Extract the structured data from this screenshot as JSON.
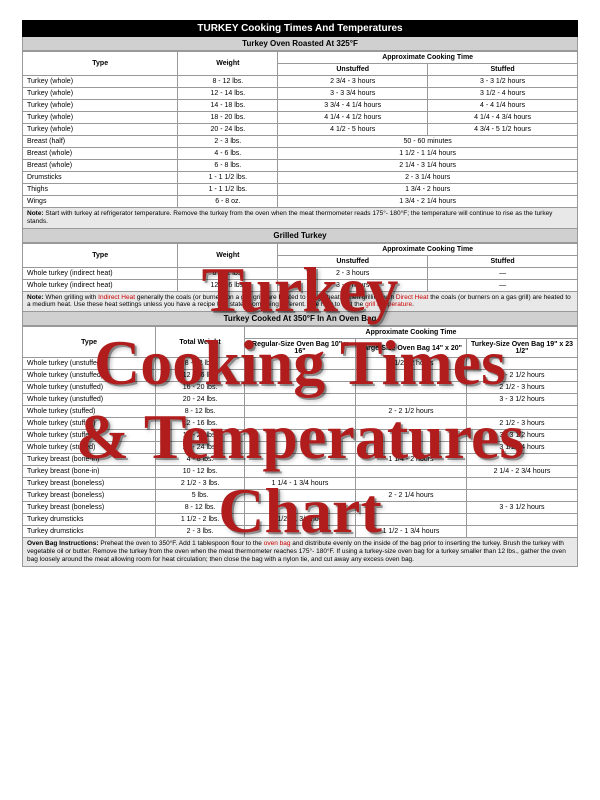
{
  "overlay": {
    "line1": "Turkey",
    "line2": "Cooking Times",
    "line3": "& Temperatures",
    "line4": "Chart"
  },
  "banner": "TURKEY Cooking Times And Temperatures",
  "sec1": {
    "title": "Turkey Oven Roasted At 325°F",
    "h_type": "Type",
    "h_weight": "Weight",
    "h_approx": "Approximate Cooking Time",
    "h_unstuffed": "Unstuffed",
    "h_stuffed": "Stuffed",
    "rows": [
      {
        "type": "Turkey (whole)",
        "wt": "8 - 12 lbs.",
        "un": "2 3/4 - 3 hours",
        "st": "3 - 3 1/2 hours"
      },
      {
        "type": "Turkey (whole)",
        "wt": "12 - 14 lbs.",
        "un": "3 - 3 3/4 hours",
        "st": "3 1/2 - 4 hours"
      },
      {
        "type": "Turkey (whole)",
        "wt": "14 - 18 lbs.",
        "un": "3 3/4 - 4 1/4 hours",
        "st": "4 - 4 1/4 hours"
      },
      {
        "type": "Turkey (whole)",
        "wt": "18 - 20 lbs.",
        "un": "4 1/4 - 4 1/2 hours",
        "st": "4 1/4 - 4 3/4 hours"
      },
      {
        "type": "Turkey (whole)",
        "wt": "20 - 24 lbs.",
        "un": "4 1/2 - 5 hours",
        "st": "4 3/4 - 5 1/2 hours"
      },
      {
        "type": "Breast (half)",
        "wt": "2 - 3 lbs.",
        "un": "50 - 60 minutes",
        "st": ""
      },
      {
        "type": "Breast (whole)",
        "wt": "4 - 6 lbs.",
        "un": "1 1/2 - 1 1/4 hours",
        "st": ""
      },
      {
        "type": "Breast (whole)",
        "wt": "6 - 8 lbs.",
        "un": "2 1/4 - 3 1/4 hours",
        "st": ""
      },
      {
        "type": "Drumsticks",
        "wt": "1 - 1 1/2 lbs.",
        "un": "2 - 3 1/4 hours",
        "st": ""
      },
      {
        "type": "Thighs",
        "wt": "1 - 1 1/2 lbs.",
        "un": "1 3/4 - 2 hours",
        "st": ""
      },
      {
        "type": "Wings",
        "wt": "6 - 8 oz.",
        "un": "1 3/4 - 2 1/4 hours",
        "st": ""
      }
    ],
    "note_b": "Note:",
    "note": " Start with turkey at refrigerator temperature. Remove the turkey from the oven when the meat thermometer reads 175°- 180°F; the temperature will continue to rise as the turkey stands."
  },
  "sec2": {
    "title": "Grilled Turkey",
    "h_type": "Type",
    "h_weight": "Weight",
    "h_approx": "Approximate Cooking Time",
    "h_unstuffed": "Unstuffed",
    "h_stuffed": "Stuffed",
    "rows": [
      {
        "type": "Whole turkey (indirect heat)",
        "wt": "8 - 12 lbs.",
        "un": "2 - 3 hours",
        "st": "—"
      },
      {
        "type": "Whole turkey (indirect heat)",
        "wt": "12 - 16 lbs.",
        "un": "3 - 4 hours",
        "st": "—"
      }
    ],
    "note_b": "Note:",
    "note_1": " When grilling with ",
    "note_indirect": "Indirect Heat",
    "note_2": " generally the coals (or burners on a gas grill) are heated to a high heat. When grilling with ",
    "note_direct": "Direct Heat",
    "note_3": " the coals (or burners on a gas grill) are heated to a medium heat. Use these heat settings unless you have a recipe that states something different. See how to test the ",
    "note_grill": "grill temperature",
    "note_4": "."
  },
  "sec3": {
    "title": "Turkey Cooked At 350°F In An Oven Bag",
    "h_type": "Type",
    "h_weight": "Total Weight",
    "h_approx": "Approximate Cooking Time",
    "h_reg": "Regular-Size Oven Bag 10\" x 16\"",
    "h_lg": "Large-Size Oven Bag 14\" x 20\"",
    "h_tk": "Turkey-Size Oven Bag 19\" x 23 1/2\"",
    "rows": [
      {
        "type": "Whole turkey (unstuffed)",
        "wt": "8 - 12 lbs.",
        "c1": "",
        "c2": "1 1/2 - 2 hours",
        "c3": ""
      },
      {
        "type": "Whole turkey (unstuffed)",
        "wt": "12 - 16 lbs.",
        "c1": "",
        "c2": "",
        "c3": "2 - 2 1/2 hours"
      },
      {
        "type": "Whole turkey (unstuffed)",
        "wt": "16 - 20 lbs.",
        "c1": "",
        "c2": "",
        "c3": "2 1/2 - 3 hours"
      },
      {
        "type": "Whole turkey (unstuffed)",
        "wt": "20 - 24 lbs.",
        "c1": "",
        "c2": "",
        "c3": "3 - 3 1/2 hours"
      },
      {
        "type": "Whole turkey (stuffed)",
        "wt": "8 - 12 lbs.",
        "c1": "",
        "c2": "2 - 2 1/2 hours",
        "c3": ""
      },
      {
        "type": "Whole turkey (stuffed)",
        "wt": "12 - 16 lbs.",
        "c1": "",
        "c2": "",
        "c3": "2 1/2 - 3 hours"
      },
      {
        "type": "Whole turkey (stuffed)",
        "wt": "16 - 20 lbs.",
        "c1": "",
        "c2": "",
        "c3": "3 - 3 1/2 hours"
      },
      {
        "type": "Whole turkey (stuffed)",
        "wt": "20 - 24 lbs.",
        "c1": "",
        "c2": "",
        "c3": "3 1/2 - 4 hours"
      },
      {
        "type": "Turkey breast (bone-in)",
        "wt": "4 - 8 lbs.",
        "c1": "",
        "c2": "1 1/4 - 2 hours",
        "c3": ""
      },
      {
        "type": "Turkey breast (bone-in)",
        "wt": "10 - 12 lbs.",
        "c1": "",
        "c2": "",
        "c3": "2 1/4 - 2 3/4 hours"
      },
      {
        "type": "Turkey breast (boneless)",
        "wt": "2 1/2 - 3 lbs.",
        "c1": "1 1/4 - 1 3/4 hours",
        "c2": "",
        "c3": ""
      },
      {
        "type": "Turkey breast (boneless)",
        "wt": "5 lbs.",
        "c1": "",
        "c2": "2 - 2 1/4 hours",
        "c3": ""
      },
      {
        "type": "Turkey breast (boneless)",
        "wt": "8 - 12 lbs.",
        "c1": "",
        "c2": "",
        "c3": "3 - 3 1/2 hours"
      },
      {
        "type": "Turkey drumsticks",
        "wt": "1 1/2 - 2 lbs.",
        "c1": "1 1/2 - 1 3/4 hours",
        "c2": "",
        "c3": ""
      },
      {
        "type": "Turkey drumsticks",
        "wt": "2 - 3 lbs.",
        "c1": "",
        "c2": "1 1/2 - 1 3/4 hours",
        "c3": ""
      }
    ],
    "note_b": "Oven Bag Instructions:",
    "note_1": " Preheat the oven to 350°F. Add 1 tablespoon flour to the ",
    "note_link": "oven bag",
    "note_2": " and distribute evenly on the inside of the bag prior to inserting the turkey. Brush the turkey with vegetable oil or butter. Remove the turkey from the oven when the meat thermometer reaches 175°- 180°F. If using a turkey-size oven bag for a turkey smaller than 12 lbs., gather the oven bag loosely around the meat allowing room for heat circulation; then close the bag with a nylon tie, and cut away any excess oven bag."
  }
}
